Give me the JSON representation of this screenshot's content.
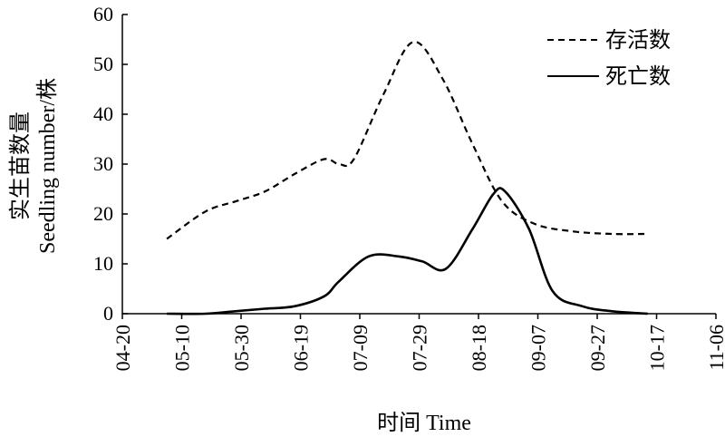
{
  "chart_data": {
    "type": "line",
    "xlabel": "时间 Time",
    "ylabel_cn": "实生苗数量",
    "ylabel_en": "Seedling number/株",
    "ylim": [
      0,
      60
    ],
    "yticks": [
      "0",
      "10",
      "20",
      "30",
      "40",
      "50",
      "60"
    ],
    "xticks": [
      "04-20",
      "05-10",
      "05-30",
      "06-19",
      "07-09",
      "07-29",
      "08-18",
      "09-07",
      "09-27",
      "10-17",
      "11-06"
    ],
    "grid": false,
    "legend_position": "top-right",
    "series": [
      {
        "name": "存活数",
        "style": "dashed",
        "x": [
          "05-05",
          "05-18",
          "05-28",
          "06-07",
          "06-17",
          "06-27",
          "07-02",
          "07-07",
          "07-17",
          "07-27",
          "08-06",
          "08-16",
          "08-26",
          "09-06",
          "09-19",
          "10-02",
          "10-14"
        ],
        "values": [
          15,
          20.5,
          22.5,
          24.5,
          28,
          31,
          30,
          31,
          44,
          54.5,
          47,
          34,
          22.5,
          18,
          16.5,
          16,
          16
        ]
      },
      {
        "name": "死亡数",
        "style": "solid",
        "x": [
          "05-05",
          "05-18",
          "05-28",
          "06-07",
          "06-17",
          "06-27",
          "07-02",
          "07-12",
          "07-22",
          "07-30",
          "08-07",
          "08-16",
          "08-23",
          "08-27",
          "09-04",
          "09-12",
          "09-22",
          "10-02",
          "10-14"
        ],
        "values": [
          0,
          0,
          0.5,
          1,
          1.5,
          3.5,
          6.5,
          11.5,
          11.5,
          10.5,
          9,
          17,
          24,
          24.5,
          17,
          4.5,
          1.5,
          0.5,
          0
        ]
      }
    ]
  }
}
